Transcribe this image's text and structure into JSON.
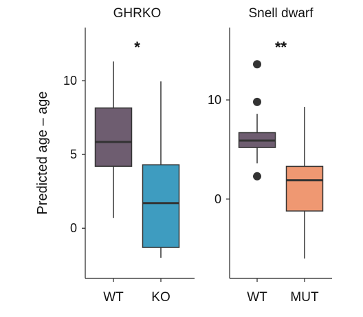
{
  "chart_data": {
    "type": "box",
    "ylabel": "Predicted age – age",
    "panels": [
      {
        "title": "GHRKO",
        "significance": "*",
        "ylim": [
          -3.4,
          13.6
        ],
        "yticks": [
          0,
          5,
          10
        ],
        "categories": [
          "WT",
          "KO"
        ],
        "boxes": [
          {
            "category": "WT",
            "whisker_low": 0.7,
            "q1": 4.2,
            "median": 5.85,
            "q3": 8.15,
            "whisker_high": 11.3,
            "outliers": [],
            "color": "#6e5d70"
          },
          {
            "category": "KO",
            "whisker_low": -2.0,
            "q1": -1.3,
            "median": 1.7,
            "q3": 4.3,
            "whisker_high": 9.95,
            "outliers": [],
            "color": "#3e9cc0"
          }
        ]
      },
      {
        "title": "Snell dwarf",
        "significance": "**",
        "ylim": [
          -8.0,
          17.3
        ],
        "yticks": [
          0,
          10
        ],
        "categories": [
          "WT",
          "MUT"
        ],
        "boxes": [
          {
            "category": "WT",
            "whisker_low": 3.6,
            "q1": 5.2,
            "median": 5.9,
            "q3": 6.7,
            "whisker_high": 8.6,
            "outliers": [
              13.6,
              9.8,
              2.3
            ],
            "color": "#6e5d70"
          },
          {
            "category": "MUT",
            "whisker_low": -6.0,
            "q1": -1.2,
            "median": 1.9,
            "q3": 3.3,
            "whisker_high": 9.3,
            "outliers": [],
            "color": "#ef9872"
          }
        ]
      }
    ],
    "grid": false,
    "legend": "none"
  }
}
